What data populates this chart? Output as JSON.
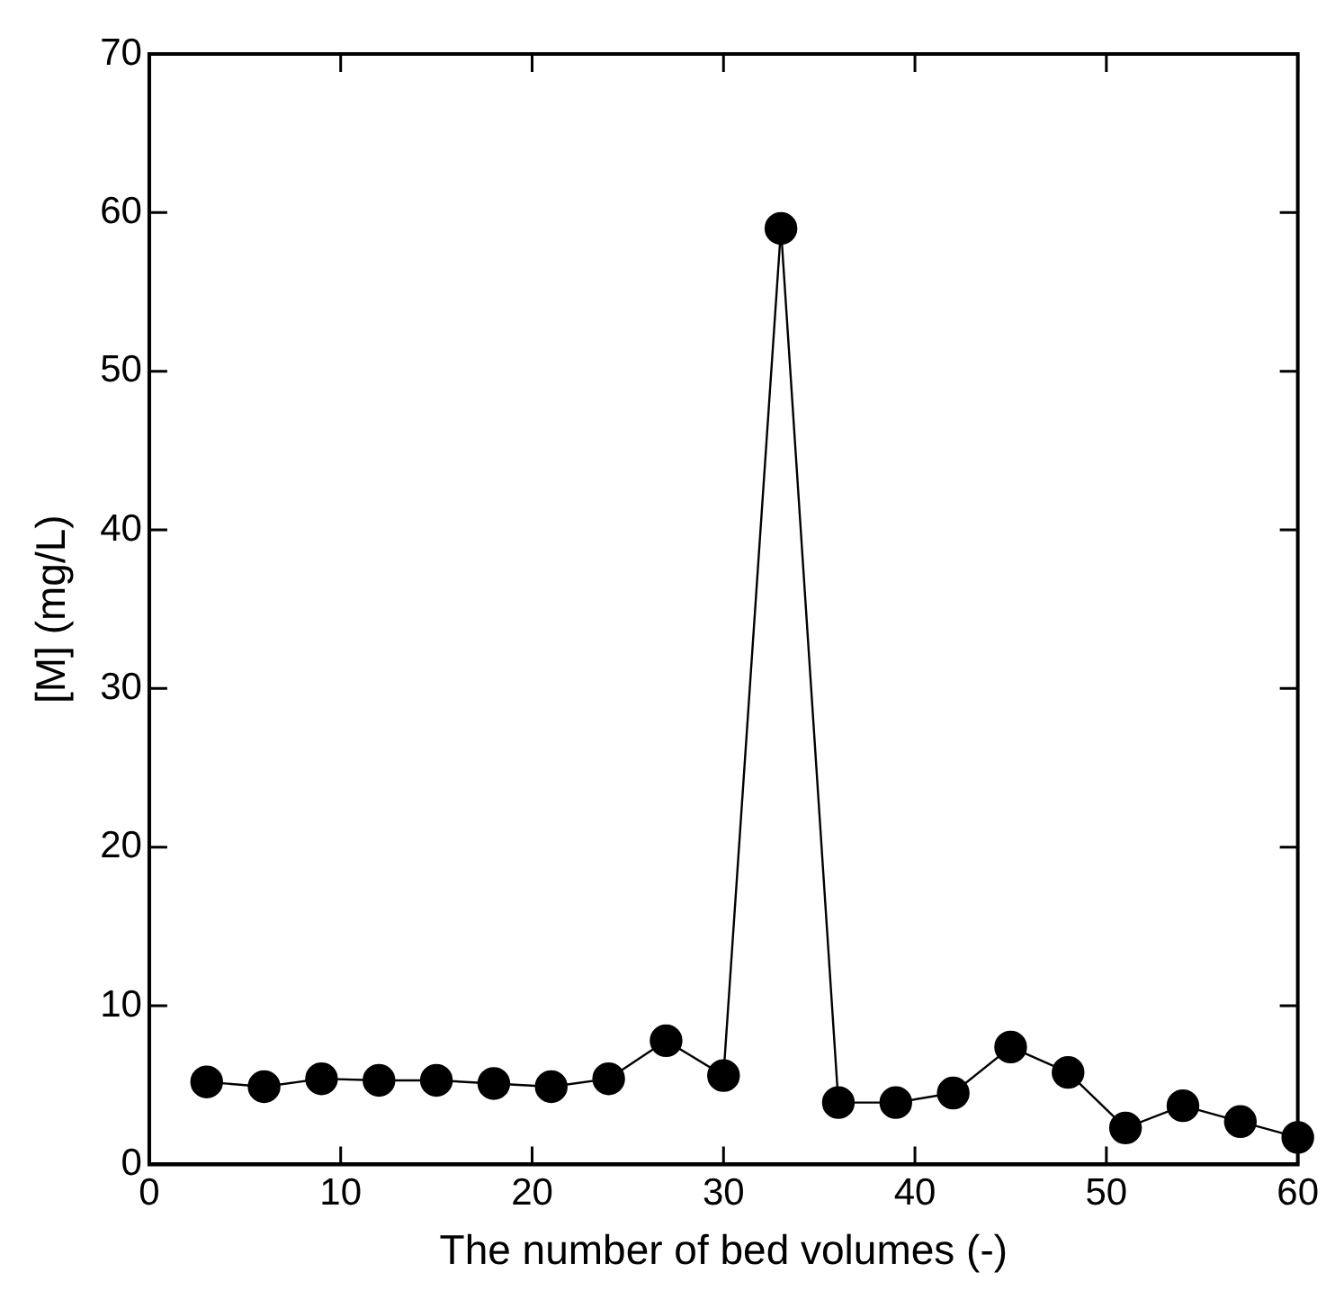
{
  "chart_data": {
    "type": "line",
    "xlabel": "The number of bed volumes (-)",
    "ylabel": "[M] (mg/L)",
    "x": [
      3,
      6,
      9,
      12,
      15,
      18,
      21,
      24,
      27,
      30,
      33,
      36,
      39,
      42,
      45,
      48,
      51,
      54,
      57,
      60
    ],
    "series": [
      {
        "color": "#000000",
        "values": [
          5.2,
          4.9,
          5.4,
          5.3,
          5.3,
          5.1,
          4.9,
          5.4,
          7.8,
          5.6,
          59,
          3.9,
          3.9,
          4.5,
          7.4,
          5.8,
          2.3,
          3.7,
          2.7,
          1.7
        ]
      }
    ],
    "xlim": [
      0,
      60
    ],
    "xticks": [
      0,
      10,
      20,
      30,
      40,
      50,
      60
    ],
    "ylim": [
      0,
      70
    ],
    "yticks": [
      0,
      10,
      20,
      30,
      40,
      50,
      60,
      70
    ],
    "marker": "circle",
    "line_style": "solid",
    "legend": false
  }
}
